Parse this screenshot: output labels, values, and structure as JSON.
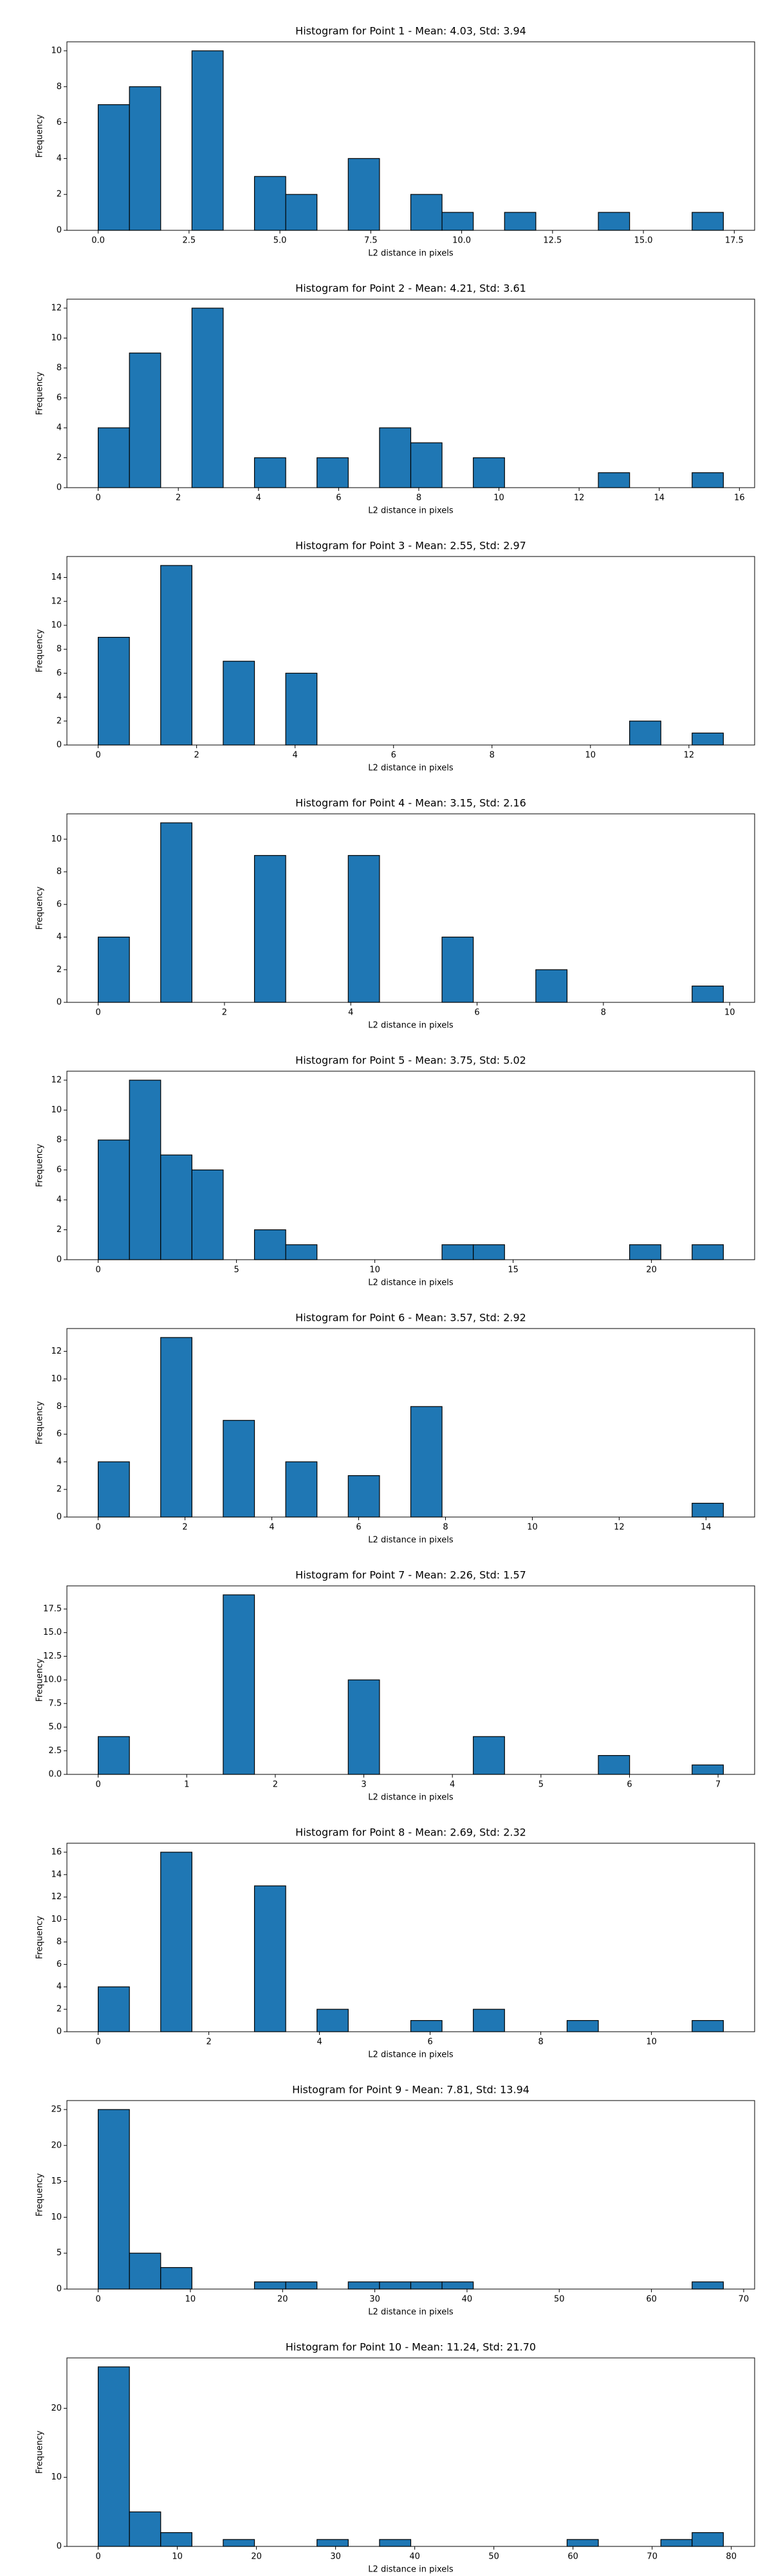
{
  "chart_data": [
    {
      "type": "histogram",
      "title": "Histogram for Point 1 - Mean: 4.03, Std: 3.94",
      "x_label": "L2 distance in pixels",
      "y_label": "Frequency",
      "color": "#1f77b4",
      "bins": [
        0,
        0.86,
        1.72,
        2.58,
        3.44,
        4.3,
        5.16,
        6.02,
        6.88,
        7.74,
        8.6,
        9.46,
        10.32,
        11.18,
        12.04,
        12.9,
        13.76,
        14.62,
        15.48,
        16.34,
        17.2
      ],
      "values": [
        7,
        8,
        0,
        10,
        0,
        3,
        2,
        0,
        4,
        0,
        2,
        1,
        0,
        1,
        0,
        0,
        1,
        0,
        0,
        1
      ],
      "xlim": [
        -0.86,
        18.06
      ],
      "xticks": [
        {
          "value": 0,
          "label": "0.0"
        },
        2.5,
        {
          "value": 5,
          "label": "5.0"
        },
        7.5,
        {
          "value": 10,
          "label": "10.0"
        },
        12.5,
        {
          "value": 15,
          "label": "15.0"
        },
        17.5
      ],
      "ylim": [
        0,
        10.5
      ],
      "yticks": [
        0,
        2,
        4,
        6,
        8,
        10
      ]
    },
    {
      "type": "histogram",
      "title": "Histogram for Point 2 - Mean: 4.21, Std: 3.61",
      "x_label": "L2 distance in pixels",
      "y_label": "Frequency",
      "color": "#1f77b4",
      "bins": [
        0,
        0.78,
        1.56,
        2.34,
        3.12,
        3.9,
        4.68,
        5.46,
        6.24,
        7.02,
        7.8,
        8.58,
        9.36,
        10.14,
        10.92,
        11.7,
        12.48,
        13.26,
        14.04,
        14.82,
        15.6
      ],
      "values": [
        4,
        9,
        0,
        12,
        0,
        2,
        0,
        2,
        0,
        4,
        3,
        0,
        2,
        0,
        0,
        0,
        1,
        0,
        0,
        1
      ],
      "xlim": [
        -0.78,
        16.38
      ],
      "xticks": [
        0,
        2,
        4,
        6,
        8,
        10,
        12,
        14,
        16
      ],
      "ylim": [
        0,
        12.6
      ],
      "yticks": [
        0,
        2,
        4,
        6,
        8,
        10,
        12
      ]
    },
    {
      "type": "histogram",
      "title": "Histogram for Point 3 - Mean: 2.55, Std: 2.97",
      "x_label": "L2 distance in pixels",
      "y_label": "Frequency",
      "color": "#1f77b4",
      "bins": [
        0,
        0.635,
        1.27,
        1.905,
        2.54,
        3.175,
        3.81,
        4.445,
        5.08,
        5.715,
        6.35,
        6.985,
        7.62,
        8.255,
        8.89,
        9.525,
        10.16,
        10.795,
        11.43,
        12.065,
        12.7
      ],
      "values": [
        9,
        0,
        15,
        0,
        7,
        0,
        6,
        0,
        0,
        0,
        0,
        0,
        0,
        0,
        0,
        0,
        0,
        2,
        0,
        1
      ],
      "xlim": [
        -0.635,
        13.335
      ],
      "xticks": [
        0,
        2,
        4,
        6,
        8,
        10,
        12
      ],
      "ylim": [
        0,
        15.75
      ],
      "yticks": [
        0,
        2,
        4,
        6,
        8,
        10,
        12,
        14
      ]
    },
    {
      "type": "histogram",
      "title": "Histogram for Point 4 - Mean: 3.15, Std: 2.16",
      "x_label": "L2 distance in pixels",
      "y_label": "Frequency",
      "color": "#1f77b4",
      "bins": [
        0,
        0.495,
        0.99,
        1.485,
        1.98,
        2.475,
        2.97,
        3.465,
        3.96,
        4.455,
        4.95,
        5.445,
        5.94,
        6.435,
        6.93,
        7.425,
        7.92,
        8.415,
        8.91,
        9.405,
        9.9
      ],
      "values": [
        4,
        0,
        11,
        0,
        0,
        9,
        0,
        0,
        9,
        0,
        0,
        4,
        0,
        0,
        2,
        0,
        0,
        0,
        0,
        1
      ],
      "xlim": [
        -0.495,
        10.395
      ],
      "xticks": [
        0,
        2,
        4,
        6,
        8,
        10
      ],
      "ylim": [
        0,
        11.55
      ],
      "yticks": [
        0,
        2,
        4,
        6,
        8,
        10
      ]
    },
    {
      "type": "histogram",
      "title": "Histogram for Point 5 - Mean: 3.75, Std: 5.02",
      "x_label": "L2 distance in pixels",
      "y_label": "Frequency",
      "color": "#1f77b4",
      "bins": [
        0,
        1.13,
        2.26,
        3.39,
        4.52,
        5.65,
        6.78,
        7.91,
        9.04,
        10.17,
        11.3,
        12.43,
        13.56,
        14.69,
        15.82,
        16.95,
        18.08,
        19.21,
        20.34,
        21.47,
        22.6
      ],
      "values": [
        8,
        12,
        7,
        6,
        0,
        2,
        1,
        0,
        0,
        0,
        0,
        1,
        1,
        0,
        0,
        0,
        0,
        1,
        0,
        1
      ],
      "xlim": [
        -1.13,
        23.73
      ],
      "xticks": [
        0,
        5,
        10,
        15,
        20
      ],
      "ylim": [
        0,
        12.6
      ],
      "yticks": [
        0,
        2,
        4,
        6,
        8,
        10,
        12
      ]
    },
    {
      "type": "histogram",
      "title": "Histogram for Point 6 - Mean: 3.57, Std: 2.92",
      "x_label": "L2 distance in pixels",
      "y_label": "Frequency",
      "color": "#1f77b4",
      "bins": [
        0,
        0.72,
        1.44,
        2.16,
        2.88,
        3.6,
        4.32,
        5.04,
        5.76,
        6.48,
        7.2,
        7.92,
        8.64,
        9.36,
        10.08,
        10.8,
        11.52,
        12.24,
        12.96,
        13.68,
        14.4
      ],
      "values": [
        4,
        0,
        13,
        0,
        7,
        0,
        4,
        0,
        3,
        0,
        8,
        0,
        0,
        0,
        0,
        0,
        0,
        0,
        0,
        1
      ],
      "xlim": [
        -0.72,
        15.12
      ],
      "xticks": [
        0,
        2,
        4,
        6,
        8,
        10,
        12,
        14
      ],
      "ylim": [
        0,
        13.65
      ],
      "yticks": [
        0,
        2,
        4,
        6,
        8,
        10,
        12
      ]
    },
    {
      "type": "histogram",
      "title": "Histogram for Point 7 - Mean: 2.26, Std: 1.57",
      "x_label": "L2 distance in pixels",
      "y_label": "Frequency",
      "color": "#1f77b4",
      "bins": [
        0,
        0.353,
        0.706,
        1.059,
        1.412,
        1.765,
        2.118,
        2.471,
        2.824,
        3.177,
        3.53,
        3.883,
        4.236,
        4.589,
        4.942,
        5.295,
        5.648,
        6.001,
        6.354,
        6.707,
        7.06
      ],
      "values": [
        4,
        0,
        0,
        0,
        19,
        0,
        0,
        0,
        10,
        0,
        0,
        0,
        4,
        0,
        0,
        0,
        2,
        0,
        0,
        1
      ],
      "xlim": [
        -0.353,
        7.413
      ],
      "xticks": [
        0,
        1,
        2,
        3,
        4,
        5,
        6,
        7
      ],
      "ylim": [
        0,
        19.95
      ],
      "yticks": [
        {
          "value": 0,
          "label": "0.0"
        },
        2.5,
        {
          "value": 5,
          "label": "5.0"
        },
        7.5,
        {
          "value": 10,
          "label": "10.0"
        },
        12.5,
        {
          "value": 15,
          "label": "15.0"
        },
        17.5
      ]
    },
    {
      "type": "histogram",
      "title": "Histogram for Point 8 - Mean: 2.69, Std: 2.32",
      "x_label": "L2 distance in pixels",
      "y_label": "Frequency",
      "color": "#1f77b4",
      "bins": [
        0,
        0.565,
        1.13,
        1.695,
        2.26,
        2.825,
        3.39,
        3.955,
        4.52,
        5.085,
        5.65,
        6.215,
        6.78,
        7.345,
        7.91,
        8.475,
        9.04,
        9.605,
        10.17,
        10.735,
        11.3
      ],
      "values": [
        4,
        0,
        16,
        0,
        0,
        13,
        0,
        2,
        0,
        0,
        1,
        0,
        2,
        0,
        0,
        1,
        0,
        0,
        0,
        1
      ],
      "xlim": [
        -0.565,
        11.865
      ],
      "xticks": [
        0,
        2,
        4,
        6,
        8,
        10
      ],
      "ylim": [
        0,
        16.8
      ],
      "yticks": [
        0,
        2,
        4,
        6,
        8,
        10,
        12,
        14,
        16
      ]
    },
    {
      "type": "histogram",
      "title": "Histogram for Point 9 - Mean: 7.81, Std: 13.94",
      "x_label": "L2 distance in pixels",
      "y_label": "Frequency",
      "color": "#1f77b4",
      "bins": [
        0,
        3.39,
        6.78,
        10.17,
        13.56,
        16.95,
        20.34,
        23.73,
        27.12,
        30.51,
        33.9,
        37.29,
        40.68,
        44.07,
        47.46,
        50.85,
        54.24,
        57.63,
        61.02,
        64.41,
        67.8
      ],
      "values": [
        25,
        5,
        3,
        0,
        0,
        1,
        1,
        0,
        1,
        1,
        1,
        1,
        0,
        0,
        0,
        0,
        0,
        0,
        0,
        1
      ],
      "xlim": [
        -3.39,
        71.19
      ],
      "xticks": [
        0,
        10,
        20,
        30,
        40,
        50,
        60,
        70
      ],
      "ylim": [
        0,
        26.25
      ],
      "yticks": [
        0,
        5,
        10,
        15,
        20,
        25
      ]
    },
    {
      "type": "histogram",
      "title": "Histogram for Point 10 - Mean: 11.24, Std: 21.70",
      "x_label": "L2 distance in pixels",
      "y_label": "Frequency",
      "color": "#1f77b4",
      "bins": [
        0,
        3.95,
        7.9,
        11.85,
        15.8,
        19.75,
        23.7,
        27.65,
        31.6,
        35.55,
        39.5,
        43.45,
        47.4,
        51.35,
        55.3,
        59.25,
        63.2,
        67.15,
        71.1,
        75.05,
        79
      ],
      "values": [
        26,
        5,
        2,
        0,
        1,
        0,
        0,
        1,
        0,
        1,
        0,
        0,
        0,
        0,
        0,
        1,
        0,
        0,
        1,
        2
      ],
      "xlim": [
        -3.95,
        82.95
      ],
      "xticks": [
        0,
        10,
        20,
        30,
        40,
        50,
        60,
        70,
        80
      ],
      "ylim": [
        0,
        27.3
      ],
      "yticks": [
        0,
        10,
        20
      ]
    }
  ]
}
